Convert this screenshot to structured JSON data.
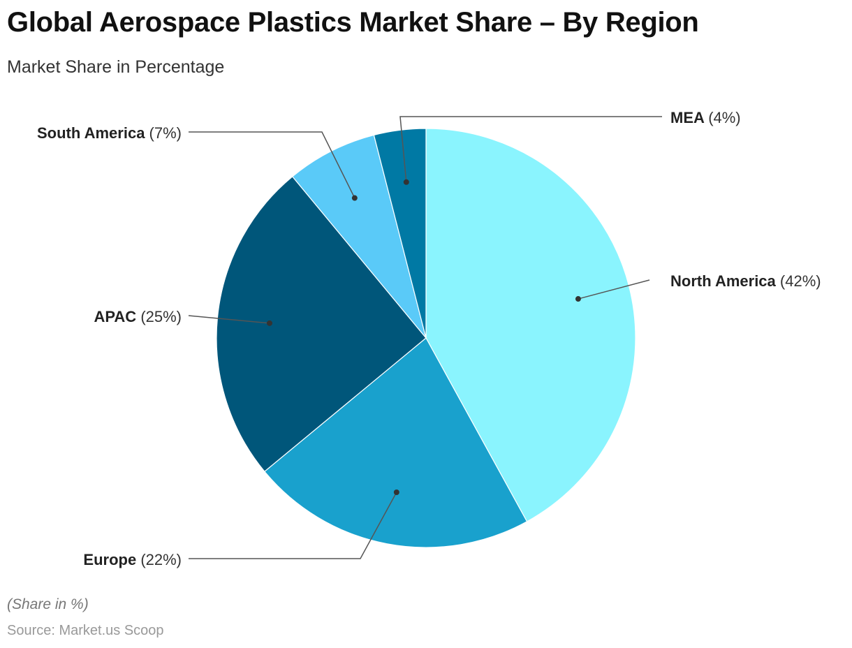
{
  "title": "Global Aerospace Plastics Market Share – By Region",
  "subtitle": "Market Share in Percentage",
  "note": "(Share in %)",
  "source": "Source: Market.us Scoop",
  "chart_data": {
    "type": "pie",
    "unit": "%",
    "slices": [
      {
        "label": "North America",
        "value": 42,
        "value_label": "(42%)",
        "color": "#8AF4FE"
      },
      {
        "label": "Europe",
        "value": 22,
        "value_label": "(22%)",
        "color": "#19A1CD"
      },
      {
        "label": "APAC",
        "value": 25,
        "value_label": "(25%)",
        "color": "#00567A"
      },
      {
        "label": "South America",
        "value": 7,
        "value_label": "(7%)",
        "color": "#5ACAF8"
      },
      {
        "label": "MEA",
        "value": 4,
        "value_label": "(4%)",
        "color": "#0079A4"
      }
    ]
  }
}
